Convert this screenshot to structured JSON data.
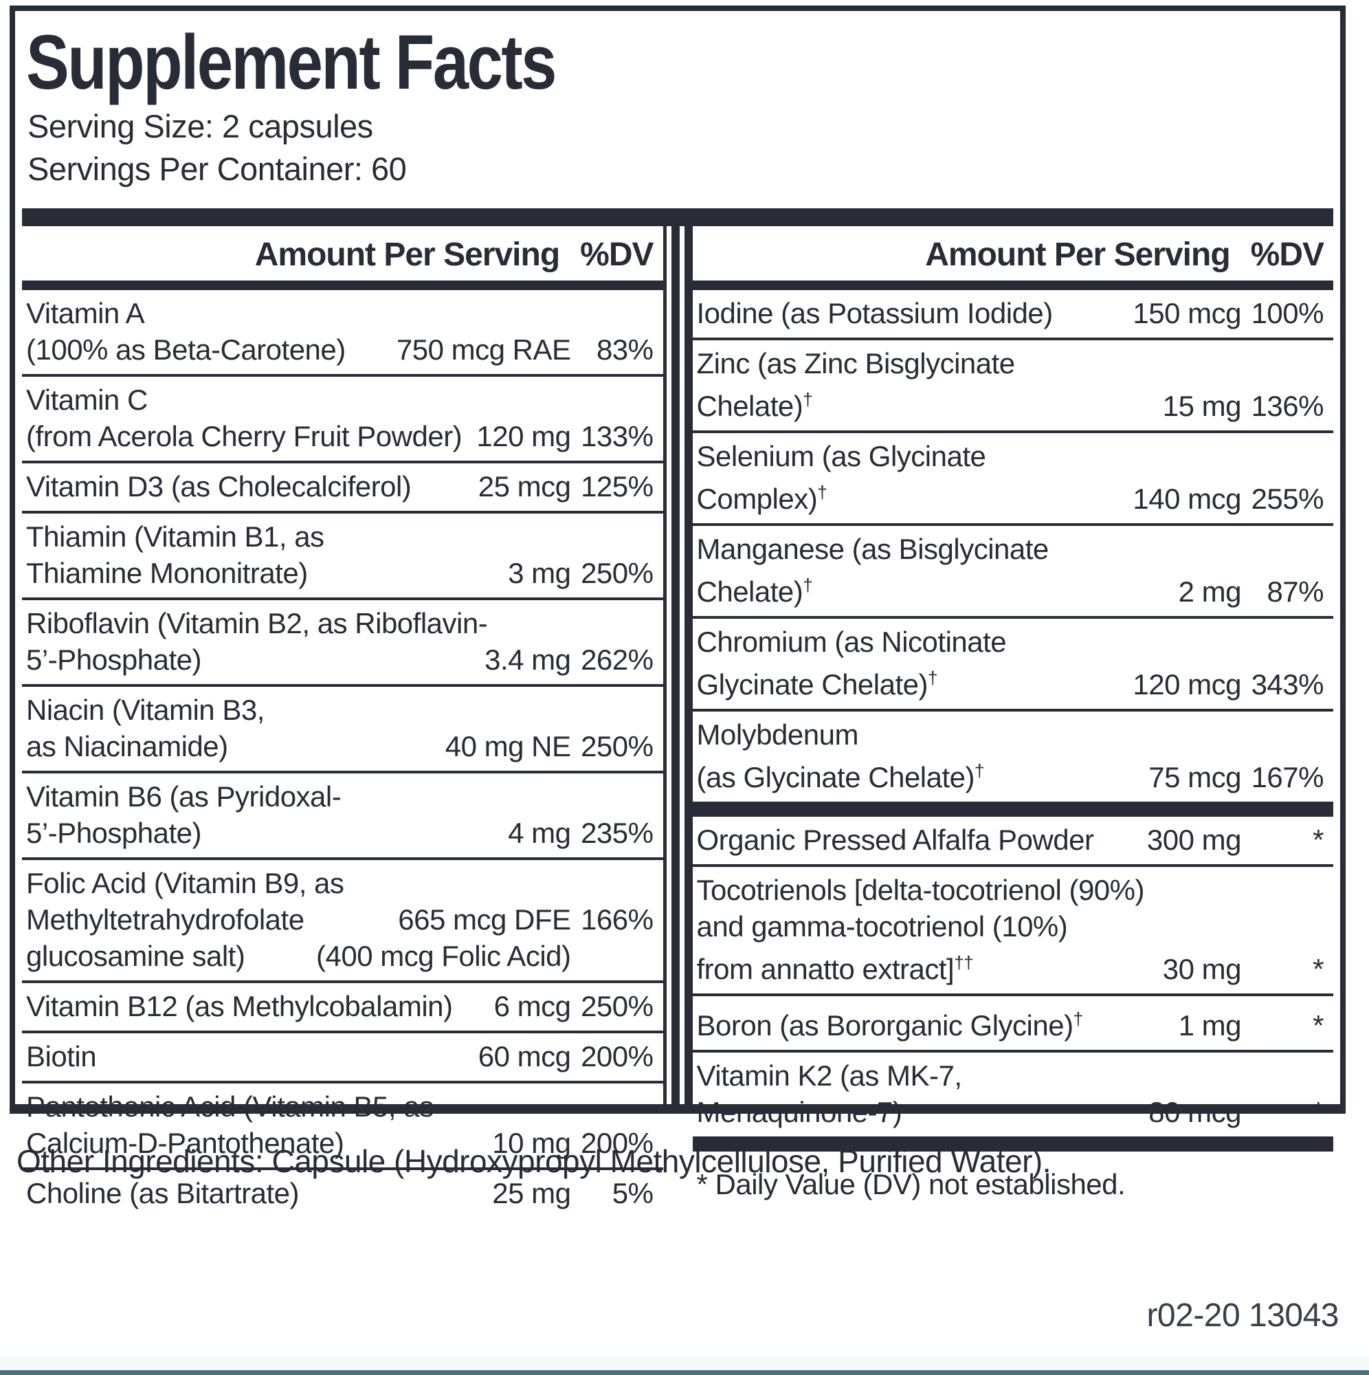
{
  "label": {
    "title": "Supplement Facts",
    "serving_size": "Serving Size: 2 capsules",
    "servings_per_container": "Servings Per Container: 60"
  },
  "columns": {
    "header": {
      "amount": "Amount Per Serving",
      "dv": "%DV"
    },
    "left": {
      "rows": [
        {
          "lines": [
            {
              "text": "Vitamin A"
            },
            {
              "text": "(100% as Beta-Carotene)",
              "amount": "750 mcg RAE",
              "dv": "83%"
            }
          ]
        },
        {
          "lines": [
            {
              "text": "Vitamin C"
            },
            {
              "text": "(from Acerola Cherry Fruit Powder)",
              "amount": "120 mg",
              "dv": "133%"
            }
          ]
        },
        {
          "lines": [
            {
              "text": "Vitamin D3 (as Cholecalciferol)",
              "amount": "25 mcg",
              "dv": "125%"
            }
          ]
        },
        {
          "lines": [
            {
              "text": "Thiamin (Vitamin B1, as"
            },
            {
              "text": "Thiamine Mononitrate)",
              "amount": "3 mg",
              "dv": "250%"
            }
          ]
        },
        {
          "lines": [
            {
              "text": "Riboflavin (Vitamin B2, as Riboflavin-"
            },
            {
              "text": "5’-Phosphate)",
              "amount": "3.4 mg",
              "dv": "262%"
            }
          ]
        },
        {
          "lines": [
            {
              "text": "Niacin (Vitamin B3,"
            },
            {
              "text": "as Niacinamide)",
              "amount": "40 mg NE",
              "dv": "250%"
            }
          ]
        },
        {
          "lines": [
            {
              "text": "Vitamin B6 (as Pyridoxal-"
            },
            {
              "text": "5’-Phosphate)",
              "amount": "4 mg",
              "dv": "235%"
            }
          ]
        },
        {
          "lines": [
            {
              "text": "Folic Acid (Vitamin B9, as"
            },
            {
              "text": "Methyltetrahydrofolate",
              "amount": "665 mcg DFE",
              "dv": "166%"
            },
            {
              "text": "glucosamine salt)",
              "amount": "(400 mcg Folic Acid)",
              "dv": ""
            }
          ]
        },
        {
          "lines": [
            {
              "text": "Vitamin B12 (as Methylcobalamin)",
              "amount": "6 mcg",
              "dv": "250%"
            }
          ]
        },
        {
          "lines": [
            {
              "text": "Biotin",
              "amount": "60 mcg",
              "dv": "200%"
            }
          ]
        },
        {
          "lines": [
            {
              "text": "Pantothenic Acid (Vitamin B5, as"
            },
            {
              "text": "Calcium-D-Pantothenate)",
              "amount": "10 mg",
              "dv": "200%"
            }
          ]
        },
        {
          "lines": [
            {
              "text": "Choline (as Bitartrate)",
              "amount": "25 mg",
              "dv": "5%"
            }
          ]
        }
      ]
    },
    "right": {
      "sections": [
        {
          "rows": [
            {
              "lines": [
                {
                  "text": "Iodine (as Potassium Iodide)",
                  "amount": "150 mcg",
                  "dv": "100%"
                }
              ]
            },
            {
              "lines": [
                {
                  "text": "Zinc (as Zinc Bisglycinate"
                },
                {
                  "text": "Chelate)†",
                  "amount": "15 mg",
                  "dv": "136%"
                }
              ]
            },
            {
              "lines": [
                {
                  "text": "Selenium (as Glycinate"
                },
                {
                  "text": "Complex)†",
                  "amount": "140 mcg",
                  "dv": "255%"
                }
              ]
            },
            {
              "lines": [
                {
                  "text": "Manganese (as Bisglycinate"
                },
                {
                  "text": "Chelate)†",
                  "amount": "2 mg",
                  "dv": "87%"
                }
              ]
            },
            {
              "lines": [
                {
                  "text": "Chromium (as Nicotinate"
                },
                {
                  "text": "Glycinate Chelate)†",
                  "amount": "120 mcg",
                  "dv": "343%"
                }
              ]
            },
            {
              "lines": [
                {
                  "text": "Molybdenum"
                },
                {
                  "text": "(as Glycinate Chelate)†",
                  "amount": "75 mcg",
                  "dv": "167%"
                }
              ]
            }
          ]
        },
        {
          "rows": [
            {
              "lines": [
                {
                  "text": "Organic Pressed Alfalfa Powder",
                  "amount": "300 mg",
                  "dv": "*"
                }
              ]
            },
            {
              "lines": [
                {
                  "text": "Tocotrienols [delta-tocotrienol (90%)"
                },
                {
                  "text": "and gamma-tocotrienol (10%)"
                },
                {
                  "text": "from annatto extract]††",
                  "amount": "30 mg",
                  "dv": "*"
                }
              ]
            },
            {
              "lines": [
                {
                  "text": "Boron (as Bororganic Glycine)†",
                  "amount": "1 mg",
                  "dv": "*"
                }
              ]
            },
            {
              "lines": [
                {
                  "text": "Vitamin K2 (as MK-7,"
                },
                {
                  "text": "Menaquinone-7)",
                  "amount": "80 mcg",
                  "dv": "*"
                }
              ]
            }
          ]
        }
      ],
      "footnote": "* Daily Value (DV) not established."
    }
  },
  "footer": {
    "other_ingredients": "Other Ingredients: Capsule (Hydroxypropyl Methylcellulose, Purified Water).",
    "revision_code": "r02-20 13043"
  },
  "colors": {
    "ink": "#282c36",
    "accent_strip": "#4f6f7d"
  }
}
